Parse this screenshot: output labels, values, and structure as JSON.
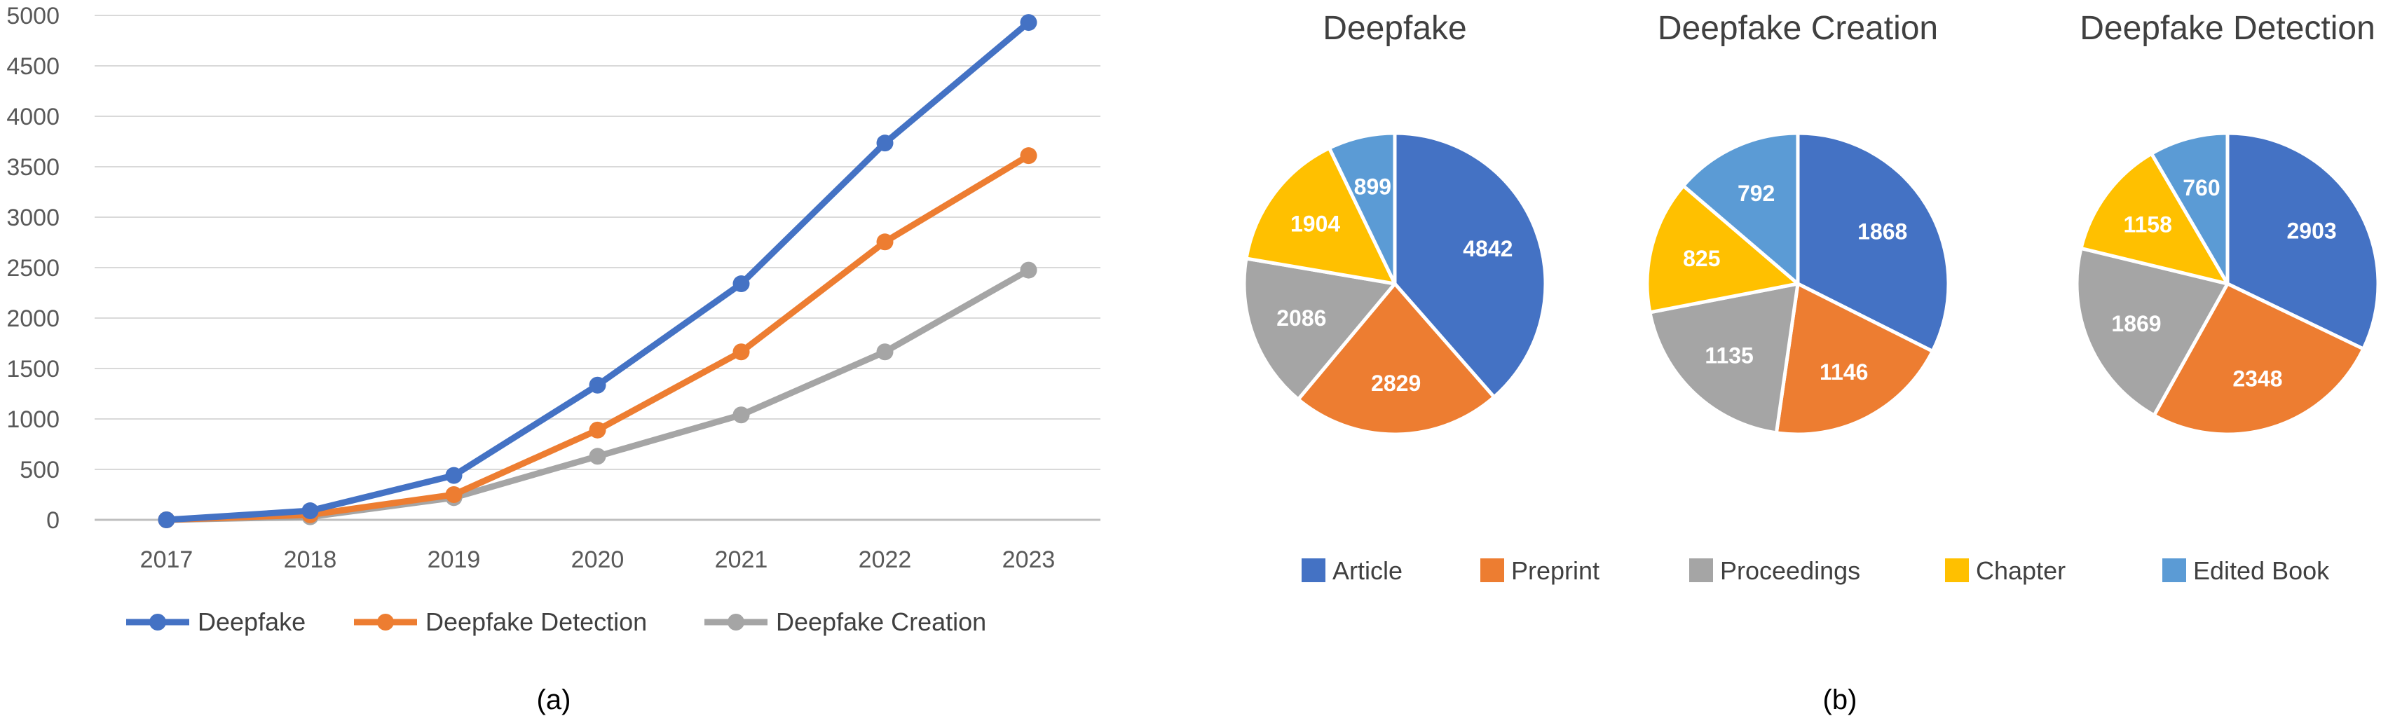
{
  "chart_data": [
    {
      "type": "line",
      "caption": "(a)",
      "categories": [
        "2017",
        "2018",
        "2019",
        "2020",
        "2021",
        "2022",
        "2023"
      ],
      "ylim": [
        0,
        5000
      ],
      "yticks": [
        0,
        500,
        1000,
        1500,
        2000,
        2500,
        3000,
        3500,
        4000,
        4500,
        5000
      ],
      "grid": true,
      "legend": "bottom",
      "series": [
        {
          "name": "Deepfake",
          "color": "#4472C4",
          "values": [
            0,
            90,
            440,
            1335,
            2340,
            3735,
            4930
          ]
        },
        {
          "name": "Deepfake Detection",
          "color": "#ED7D31",
          "values": [
            0,
            50,
            250,
            890,
            1665,
            2755,
            3610
          ]
        },
        {
          "name": "Deepfake Creation",
          "color": "#A5A5A5",
          "values": [
            0,
            30,
            220,
            630,
            1040,
            1665,
            2475
          ]
        }
      ]
    },
    {
      "type": "pie",
      "caption": "(b)",
      "legend": "bottom",
      "categories": [
        "Article",
        "Preprint",
        "Proceedings",
        "Chapter",
        "Edited Book"
      ],
      "colors": [
        "#4472C4",
        "#ED7D31",
        "#A5A5A5",
        "#FFC000",
        "#5B9BD5"
      ],
      "pies": [
        {
          "title": "Deepfake",
          "values": [
            4842,
            2829,
            2086,
            1904,
            899
          ]
        },
        {
          "title": "Deepfake Creation",
          "values": [
            1868,
            1146,
            1135,
            825,
            792
          ]
        },
        {
          "title": "Deepfake Detection",
          "values": [
            2903,
            2348,
            1869,
            1158,
            760
          ]
        }
      ]
    }
  ]
}
